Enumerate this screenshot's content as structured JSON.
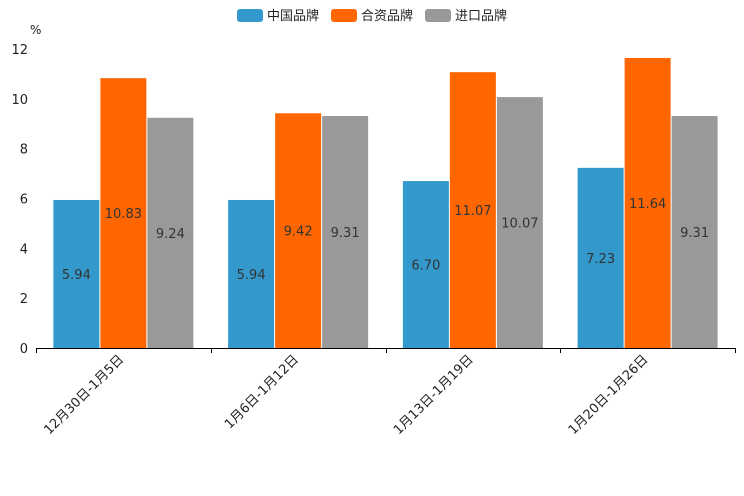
{
  "chart_data": {
    "type": "bar",
    "unit_label": "%",
    "categories": [
      "12月30日-1月5日",
      "1月6日-1月12日",
      "1月13日-1月19日",
      "1月20日-1月26日"
    ],
    "series": [
      {
        "name": "中国品牌",
        "color": "#3399CC",
        "values": [
          5.94,
          5.94,
          6.7,
          7.23
        ],
        "labels": [
          "5.94",
          "5.94",
          "6.70",
          "7.23"
        ]
      },
      {
        "name": "合资品牌",
        "color": "#FF6600",
        "values": [
          10.83,
          9.42,
          11.07,
          11.64
        ],
        "labels": [
          "10.83",
          "9.42",
          "11.07",
          "11.64"
        ]
      },
      {
        "name": "进口品牌",
        "color": "#999999",
        "values": [
          9.24,
          9.31,
          10.07,
          9.31
        ],
        "labels": [
          "9.24",
          "9.31",
          "10.07",
          "9.31"
        ]
      }
    ],
    "ylim": [
      0,
      12
    ],
    "yticks": [
      "0",
      "2",
      "4",
      "6",
      "8",
      "10",
      "12"
    ],
    "legend_position": "top-center",
    "grid": false
  }
}
